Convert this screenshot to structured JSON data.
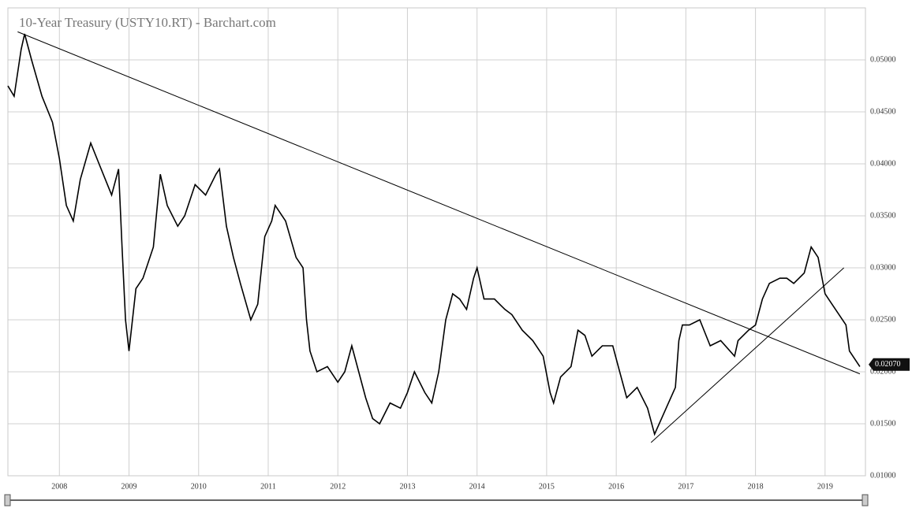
{
  "chart_data": {
    "type": "line",
    "title": "10-Year Treasury (USTY10.RT) - Barchart.com",
    "x": [
      2007.26,
      2007.35,
      2007.45,
      2007.5,
      2007.6,
      2007.75,
      2007.9,
      2008.0,
      2008.1,
      2008.2,
      2008.3,
      2008.45,
      2008.6,
      2008.75,
      2008.85,
      2008.9,
      2008.95,
      2009.0,
      2009.1,
      2009.2,
      2009.35,
      2009.45,
      2009.55,
      2009.7,
      2009.8,
      2009.95,
      2010.1,
      2010.25,
      2010.3,
      2010.4,
      2010.5,
      2010.6,
      2010.75,
      2010.85,
      2010.95,
      2011.05,
      2011.1,
      2011.25,
      2011.4,
      2011.5,
      2011.55,
      2011.6,
      2011.7,
      2011.85,
      2012.0,
      2012.1,
      2012.2,
      2012.3,
      2012.4,
      2012.5,
      2012.6,
      2012.75,
      2012.9,
      2013.0,
      2013.1,
      2013.25,
      2013.35,
      2013.45,
      2013.55,
      2013.65,
      2013.75,
      2013.85,
      2013.95,
      2014.0,
      2014.1,
      2014.25,
      2014.4,
      2014.5,
      2014.65,
      2014.8,
      2014.95,
      2015.05,
      2015.1,
      2015.2,
      2015.35,
      2015.45,
      2015.55,
      2015.65,
      2015.8,
      2015.95,
      2016.05,
      2016.15,
      2016.3,
      2016.45,
      2016.55,
      2016.65,
      2016.75,
      2016.85,
      2016.9,
      2016.95,
      2017.05,
      2017.2,
      2017.35,
      2017.5,
      2017.7,
      2017.75,
      2017.9,
      2018.0,
      2018.1,
      2018.2,
      2018.35,
      2018.45,
      2018.55,
      2018.7,
      2018.8,
      2018.9,
      2019.0,
      2019.1,
      2019.2,
      2019.3,
      2019.35,
      2019.45,
      2019.5
    ],
    "series": [
      {
        "color": "#000000",
        "values": [
          0.0475,
          0.0465,
          0.051,
          0.0525,
          0.05,
          0.0465,
          0.044,
          0.0405,
          0.036,
          0.0345,
          0.0385,
          0.042,
          0.0395,
          0.037,
          0.0395,
          0.032,
          0.025,
          0.022,
          0.028,
          0.029,
          0.032,
          0.039,
          0.036,
          0.034,
          0.035,
          0.038,
          0.037,
          0.039,
          0.0395,
          0.034,
          0.031,
          0.0285,
          0.025,
          0.0265,
          0.033,
          0.0345,
          0.036,
          0.0345,
          0.031,
          0.03,
          0.025,
          0.022,
          0.02,
          0.0205,
          0.019,
          0.02,
          0.0225,
          0.02,
          0.0175,
          0.0155,
          0.015,
          0.017,
          0.0165,
          0.018,
          0.02,
          0.018,
          0.017,
          0.02,
          0.025,
          0.0275,
          0.027,
          0.026,
          0.029,
          0.03,
          0.027,
          0.027,
          0.026,
          0.0255,
          0.024,
          0.023,
          0.0215,
          0.018,
          0.017,
          0.0195,
          0.0205,
          0.024,
          0.0235,
          0.0215,
          0.0225,
          0.0225,
          0.02,
          0.0175,
          0.0185,
          0.0165,
          0.014,
          0.0155,
          0.017,
          0.0185,
          0.023,
          0.0245,
          0.0245,
          0.025,
          0.0225,
          0.023,
          0.0215,
          0.023,
          0.024,
          0.0245,
          0.027,
          0.0285,
          0.029,
          0.029,
          0.0285,
          0.0295,
          0.032,
          0.031,
          0.0275,
          0.0265,
          0.0255,
          0.0245,
          0.022,
          0.021,
          0.0205
        ]
      }
    ],
    "trendlines": [
      {
        "x": [
          2007.4,
          2019.5
        ],
        "y": [
          0.0527,
          0.0198
        ]
      },
      {
        "x": [
          2016.5,
          2019.27
        ],
        "y": [
          0.0132,
          0.03
        ]
      }
    ],
    "last_price": {
      "value": 0.0207,
      "label": "0.02070"
    },
    "xlim": [
      2007.26,
      2019.58
    ],
    "xticks": [
      2008,
      2009,
      2010,
      2011,
      2012,
      2013,
      2014,
      2015,
      2016,
      2017,
      2018,
      2019
    ],
    "ylim": [
      0.01,
      0.055
    ],
    "yticks": [
      {
        "value": 0.01,
        "label": "0.01000"
      },
      {
        "value": 0.015,
        "label": "0.01500"
      },
      {
        "value": 0.02,
        "label": "0.02000"
      },
      {
        "value": 0.025,
        "label": "0.02500"
      },
      {
        "value": 0.03,
        "label": "0.03000"
      },
      {
        "value": 0.035,
        "label": "0.03500"
      },
      {
        "value": 0.04,
        "label": "0.04000"
      },
      {
        "value": 0.045,
        "label": "0.04500"
      },
      {
        "value": 0.05,
        "label": "0.05000"
      }
    ],
    "grid": true
  }
}
